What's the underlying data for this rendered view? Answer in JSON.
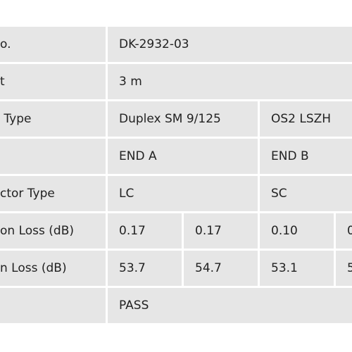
{
  "table": {
    "rows": [
      [
        "o.",
        "DK-2932-03"
      ],
      [
        "t",
        "3 m"
      ],
      [
        " Type",
        "Duplex SM 9/125",
        "OS2 LSZH"
      ],
      [
        null,
        "END A",
        "END B"
      ],
      [
        "ctor Type",
        "LC",
        "SC"
      ],
      [
        "on Loss (dB)",
        "0.17",
        "0.17",
        "0.10",
        "0"
      ],
      [
        "n Loss (dB)",
        "53.7",
        "54.7",
        "53.1",
        "5"
      ],
      [
        null,
        "PASS"
      ]
    ]
  }
}
